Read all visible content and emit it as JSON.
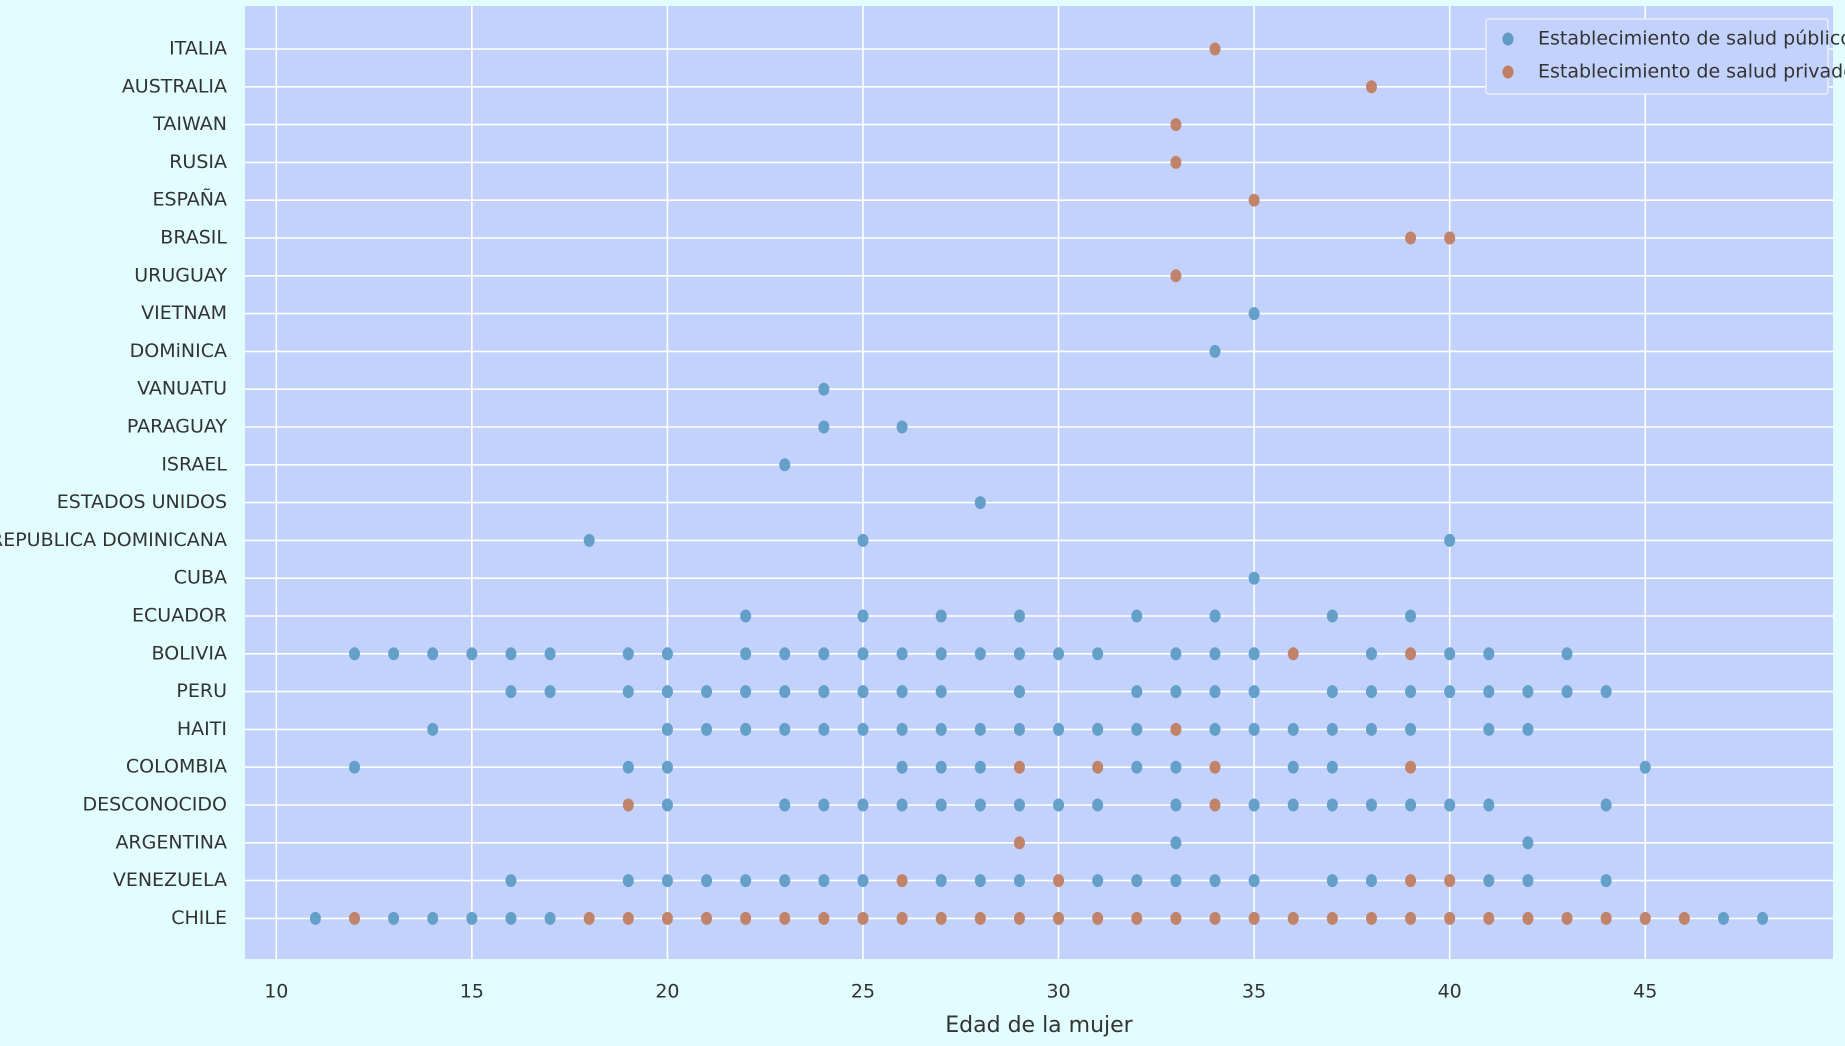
{
  "chart_data": {
    "type": "strip",
    "x_label": "Edad de la mujer",
    "xlim": [
      9.2,
      49.8
    ],
    "xticks": [
      10,
      15,
      20,
      25,
      30,
      35,
      40,
      45
    ],
    "grid": true,
    "legend": "upper right",
    "categories": [
      "ITALIA",
      "AUSTRALIA",
      "TAIWAN",
      "RUSIA",
      "ESPAÑA",
      "BRASIL",
      "URUGUAY",
      "VIETNAM",
      "DOMiNICA",
      "VANUATU",
      "PARAGUAY",
      "ISRAEL",
      "ESTADOS UNIDOS",
      "REPUBLICA DOMINICANA",
      "CUBA",
      "ECUADOR",
      "BOLIVIA",
      "PERU",
      "HAITI",
      "COLOMBIA",
      "DESCONOCIDO",
      "ARGENTINA",
      "VENEZUELA",
      "CHILE"
    ],
    "series": [
      {
        "name": "Establecimiento de salud público",
        "color": "#5e9cc6",
        "values": [
          [],
          [],
          [],
          [],
          [],
          [],
          [],
          [
            35
          ],
          [
            34
          ],
          [
            24
          ],
          [
            24,
            26
          ],
          [
            23
          ],
          [
            28
          ],
          [
            18,
            25,
            40
          ],
          [
            35
          ],
          [
            22,
            25,
            27,
            29,
            32,
            34,
            37,
            39
          ],
          [
            12,
            13,
            14,
            15,
            16,
            17,
            19,
            20,
            22,
            23,
            24,
            25,
            26,
            27,
            28,
            29,
            30,
            31,
            33,
            34,
            35,
            38,
            40,
            41,
            43
          ],
          [
            16,
            17,
            19,
            20,
            21,
            22,
            23,
            24,
            25,
            26,
            27,
            29,
            32,
            33,
            34,
            35,
            37,
            38,
            39,
            40,
            41,
            42,
            43,
            44
          ],
          [
            14,
            20,
            21,
            22,
            23,
            24,
            25,
            26,
            27,
            28,
            29,
            30,
            31,
            32,
            34,
            35,
            36,
            37,
            38,
            39,
            41,
            42
          ],
          [
            12,
            19,
            20,
            26,
            27,
            28,
            32,
            33,
            36,
            37,
            45
          ],
          [
            20,
            23,
            24,
            25,
            26,
            27,
            28,
            29,
            30,
            31,
            33,
            35,
            36,
            37,
            38,
            39,
            40,
            41,
            44
          ],
          [
            33,
            42
          ],
          [
            16,
            19,
            20,
            21,
            22,
            23,
            24,
            25,
            27,
            28,
            29,
            31,
            32,
            33,
            34,
            35,
            37,
            38,
            41,
            42,
            44
          ],
          [
            11,
            13,
            14,
            15,
            16,
            17,
            47,
            48
          ]
        ]
      },
      {
        "name": "Establecimiento de salud privado",
        "color": "#c07e62",
        "values": [
          [
            34
          ],
          [
            38
          ],
          [
            33
          ],
          [
            33
          ],
          [
            35
          ],
          [
            39,
            40
          ],
          [
            33
          ],
          [],
          [],
          [],
          [],
          [],
          [],
          [],
          [],
          [],
          [
            36,
            39
          ],
          [],
          [
            33
          ],
          [
            29,
            31,
            34,
            39
          ],
          [
            19,
            34
          ],
          [
            29
          ],
          [
            26,
            30,
            39,
            40
          ],
          [
            12,
            18,
            19,
            20,
            21,
            22,
            23,
            24,
            25,
            26,
            27,
            28,
            29,
            30,
            31,
            32,
            33,
            34,
            35,
            36,
            37,
            38,
            39,
            40,
            41,
            42,
            43,
            44,
            45,
            46
          ]
        ]
      }
    ]
  }
}
